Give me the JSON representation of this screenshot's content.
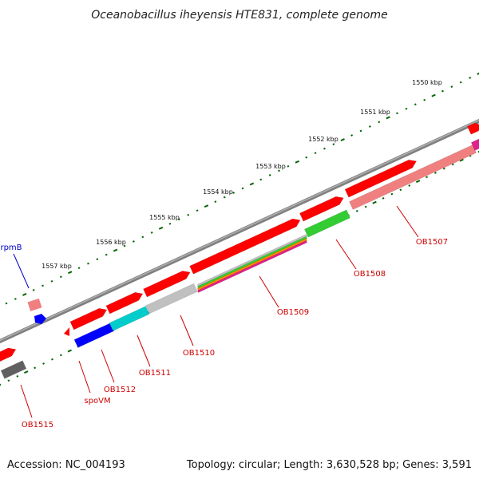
{
  "title": "Oceanobacillus iheyensis HTE831, complete genome",
  "footer": {
    "accession": "Accession: NC_004193",
    "summary": "Topology: circular; Length: 3,630,528 bp; Genes: 3,591"
  },
  "scale_labels": [
    "1550 kbp",
    "1551 kbp",
    "1552 kbp",
    "1553 kbp",
    "1554 kbp",
    "1555 kbp",
    "1556 kbp",
    "1557 kbp"
  ],
  "gene_labels": [
    "rpmB",
    "OB1507",
    "OB1508",
    "OB1509",
    "OB1510",
    "OB1511",
    "OB1512",
    "spoVM",
    "OB1515"
  ],
  "colors": {
    "backbone": "#808080",
    "gene_forward": "#ff0000",
    "pseudogene": "#f08080",
    "rna_gene": "#0000ff",
    "label_text": "#cc0000",
    "rpmB_label": "#0000cc",
    "scale_ticks": "#006400",
    "cog_green": "#33cc33",
    "cog_cyan": "#00cccc",
    "cog_gray": "#c0c0c0",
    "cog_magenta": "#e0208a",
    "cog_dark": "#606060"
  },
  "icons": [
    "gene-arrow-icon"
  ]
}
